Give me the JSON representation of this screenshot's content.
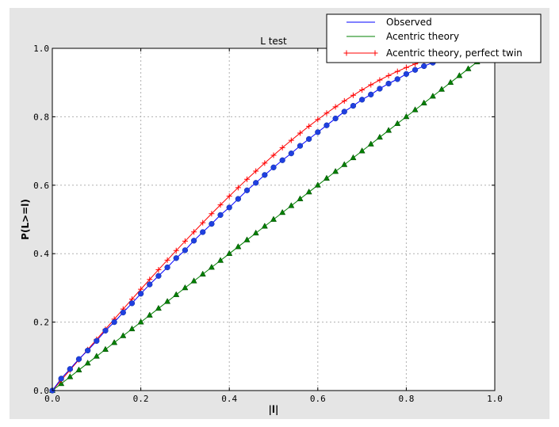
{
  "chart_data": {
    "type": "line",
    "title": "L test",
    "xlabel": "|l|",
    "ylabel": "P(L>=l)",
    "xlim": [
      0,
      1
    ],
    "ylim": [
      0,
      1
    ],
    "grid": true,
    "legend_placement": "top-right",
    "xticks": [
      "0.0",
      "0.2",
      "0.4",
      "0.6",
      "0.8",
      "1.0"
    ],
    "yticks": [
      "0.0",
      "0.2",
      "0.4",
      "0.6",
      "0.8",
      "1.0"
    ],
    "x": [
      0,
      0.02,
      0.04,
      0.06,
      0.08,
      0.1,
      0.12,
      0.14,
      0.16,
      0.18,
      0.2,
      0.22,
      0.24,
      0.26,
      0.28,
      0.3,
      0.32,
      0.34,
      0.36,
      0.38,
      0.4,
      0.42,
      0.44,
      0.46,
      0.48,
      0.5,
      0.52,
      0.54,
      0.56,
      0.58,
      0.6,
      0.62,
      0.64,
      0.66,
      0.68,
      0.7,
      0.72,
      0.74,
      0.76,
      0.78,
      0.8,
      0.82,
      0.84,
      0.86,
      0.88,
      0.9,
      0.92,
      0.94,
      0.96,
      0.98,
      1.0
    ],
    "series": [
      {
        "name": "Observed",
        "color": "#0000ff",
        "marker": "circle",
        "marker_color": "#1f3fe0",
        "values": [
          0,
          0.035,
          0.063,
          0.092,
          0.117,
          0.145,
          0.175,
          0.2,
          0.228,
          0.255,
          0.283,
          0.31,
          0.335,
          0.36,
          0.387,
          0.41,
          0.438,
          0.463,
          0.487,
          0.513,
          0.535,
          0.56,
          0.585,
          0.607,
          0.63,
          0.652,
          0.673,
          0.693,
          0.715,
          0.735,
          0.755,
          0.775,
          0.795,
          0.815,
          0.832,
          0.85,
          0.865,
          0.882,
          0.897,
          0.91,
          0.925,
          0.937,
          0.948,
          0.958,
          0.967,
          0.975,
          0.982,
          0.988,
          0.993,
          0.997,
          1.0
        ]
      },
      {
        "name": "Acentric theory",
        "color": "#008000",
        "marker": "triangle",
        "marker_color": "#008000",
        "values": [
          0,
          0.02,
          0.04,
          0.06,
          0.08,
          0.1,
          0.12,
          0.14,
          0.16,
          0.18,
          0.2,
          0.22,
          0.24,
          0.26,
          0.28,
          0.3,
          0.32,
          0.34,
          0.36,
          0.38,
          0.4,
          0.42,
          0.44,
          0.46,
          0.48,
          0.5,
          0.52,
          0.54,
          0.56,
          0.58,
          0.6,
          0.62,
          0.64,
          0.66,
          0.68,
          0.7,
          0.72,
          0.74,
          0.76,
          0.78,
          0.8,
          0.82,
          0.84,
          0.86,
          0.88,
          0.9,
          0.92,
          0.94,
          0.96,
          0.98,
          1.0
        ]
      },
      {
        "name": "Acentric theory, perfect twin",
        "color": "#ff0000",
        "marker": "plus",
        "marker_color": "#ff0000",
        "values": [
          0,
          0.03,
          0.06,
          0.0899,
          0.1197,
          0.1495,
          0.1791,
          0.2086,
          0.238,
          0.2671,
          0.296,
          0.3247,
          0.3531,
          0.3812,
          0.409,
          0.4365,
          0.4636,
          0.4904,
          0.5167,
          0.5426,
          0.568,
          0.593,
          0.6174,
          0.6413,
          0.6647,
          0.6875,
          0.7097,
          0.7313,
          0.7522,
          0.7724,
          0.792,
          0.8108,
          0.8289,
          0.8463,
          0.8628,
          0.8785,
          0.8934,
          0.9074,
          0.9205,
          0.9327,
          0.944,
          0.9543,
          0.9637,
          0.972,
          0.9793,
          0.9855,
          0.9907,
          0.9947,
          0.9976,
          0.9994,
          1.0
        ]
      }
    ]
  }
}
